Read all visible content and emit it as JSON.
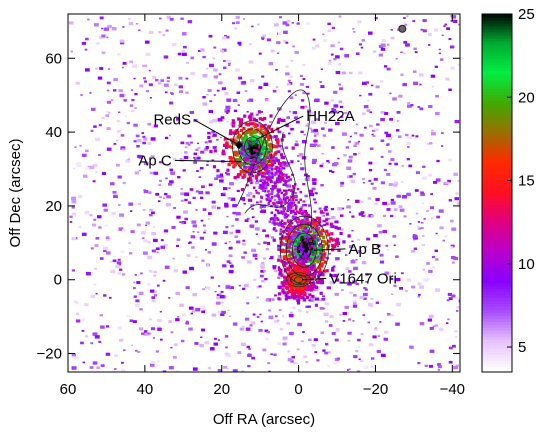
{
  "chart_data": {
    "type": "heatmap",
    "xlabel": "Off RA  (arcsec)",
    "ylabel": "Off Dec (arcsec)",
    "x_range": [
      60,
      -42
    ],
    "y_range": [
      -25,
      72
    ],
    "x_ticks": [
      60,
      40,
      20,
      0,
      -20,
      -40
    ],
    "y_ticks": [
      60,
      40,
      20,
      0,
      -20
    ],
    "x_tick_labels": [
      "60",
      "40",
      "20",
      "0",
      "−20",
      "−40"
    ],
    "y_tick_labels": [
      "60",
      "40",
      "20",
      "0",
      "−20"
    ],
    "colorbar": {
      "range": [
        3.5,
        25
      ],
      "ticks": [
        5,
        10,
        15,
        20,
        25
      ],
      "tick_labels": [
        "5",
        "10",
        "15",
        "20",
        "25"
      ],
      "colors": [
        "#ffffff",
        "#e6c2ff",
        "#a84cff",
        "#8a00ff",
        "#b800cc",
        "#e00080",
        "#ff1020",
        "#ff2a00",
        "#9a7000",
        "#3faa00",
        "#00ee44",
        "#00aa30",
        "#000000"
      ]
    },
    "sources": [
      {
        "label": "Ap C",
        "x": 12,
        "y": 35,
        "peak": 24
      },
      {
        "label": "Ap B",
        "x": -2,
        "y": 9,
        "peak": 25
      },
      {
        "label": "V1647 Ori",
        "x": 0,
        "y": 0,
        "peak": 16
      }
    ],
    "markers": [
      {
        "label": "RedS",
        "x": 15.5,
        "y": 36.5,
        "shape": "diamond"
      }
    ],
    "annotations": [
      {
        "label": "HH22A",
        "text_x": -2,
        "text_y": 43,
        "point_x": 11,
        "point_y": 38
      },
      {
        "label": "RedS",
        "text_x": 28,
        "text_y": 42,
        "point_x": 15.5,
        "point_y": 36.5
      },
      {
        "label": "Ap C",
        "text_x": 33,
        "text_y": 31,
        "point_x": 15,
        "point_y": 32
      },
      {
        "label": "Ap B",
        "text_x": -13,
        "text_y": 7,
        "point_x": -4,
        "point_y": 8
      },
      {
        "label": "V1647 Ori",
        "text_x": -8,
        "text_y": -1,
        "point_x": -1,
        "point_y": 0
      }
    ],
    "beam": {
      "x": -27,
      "y": 68
    }
  }
}
